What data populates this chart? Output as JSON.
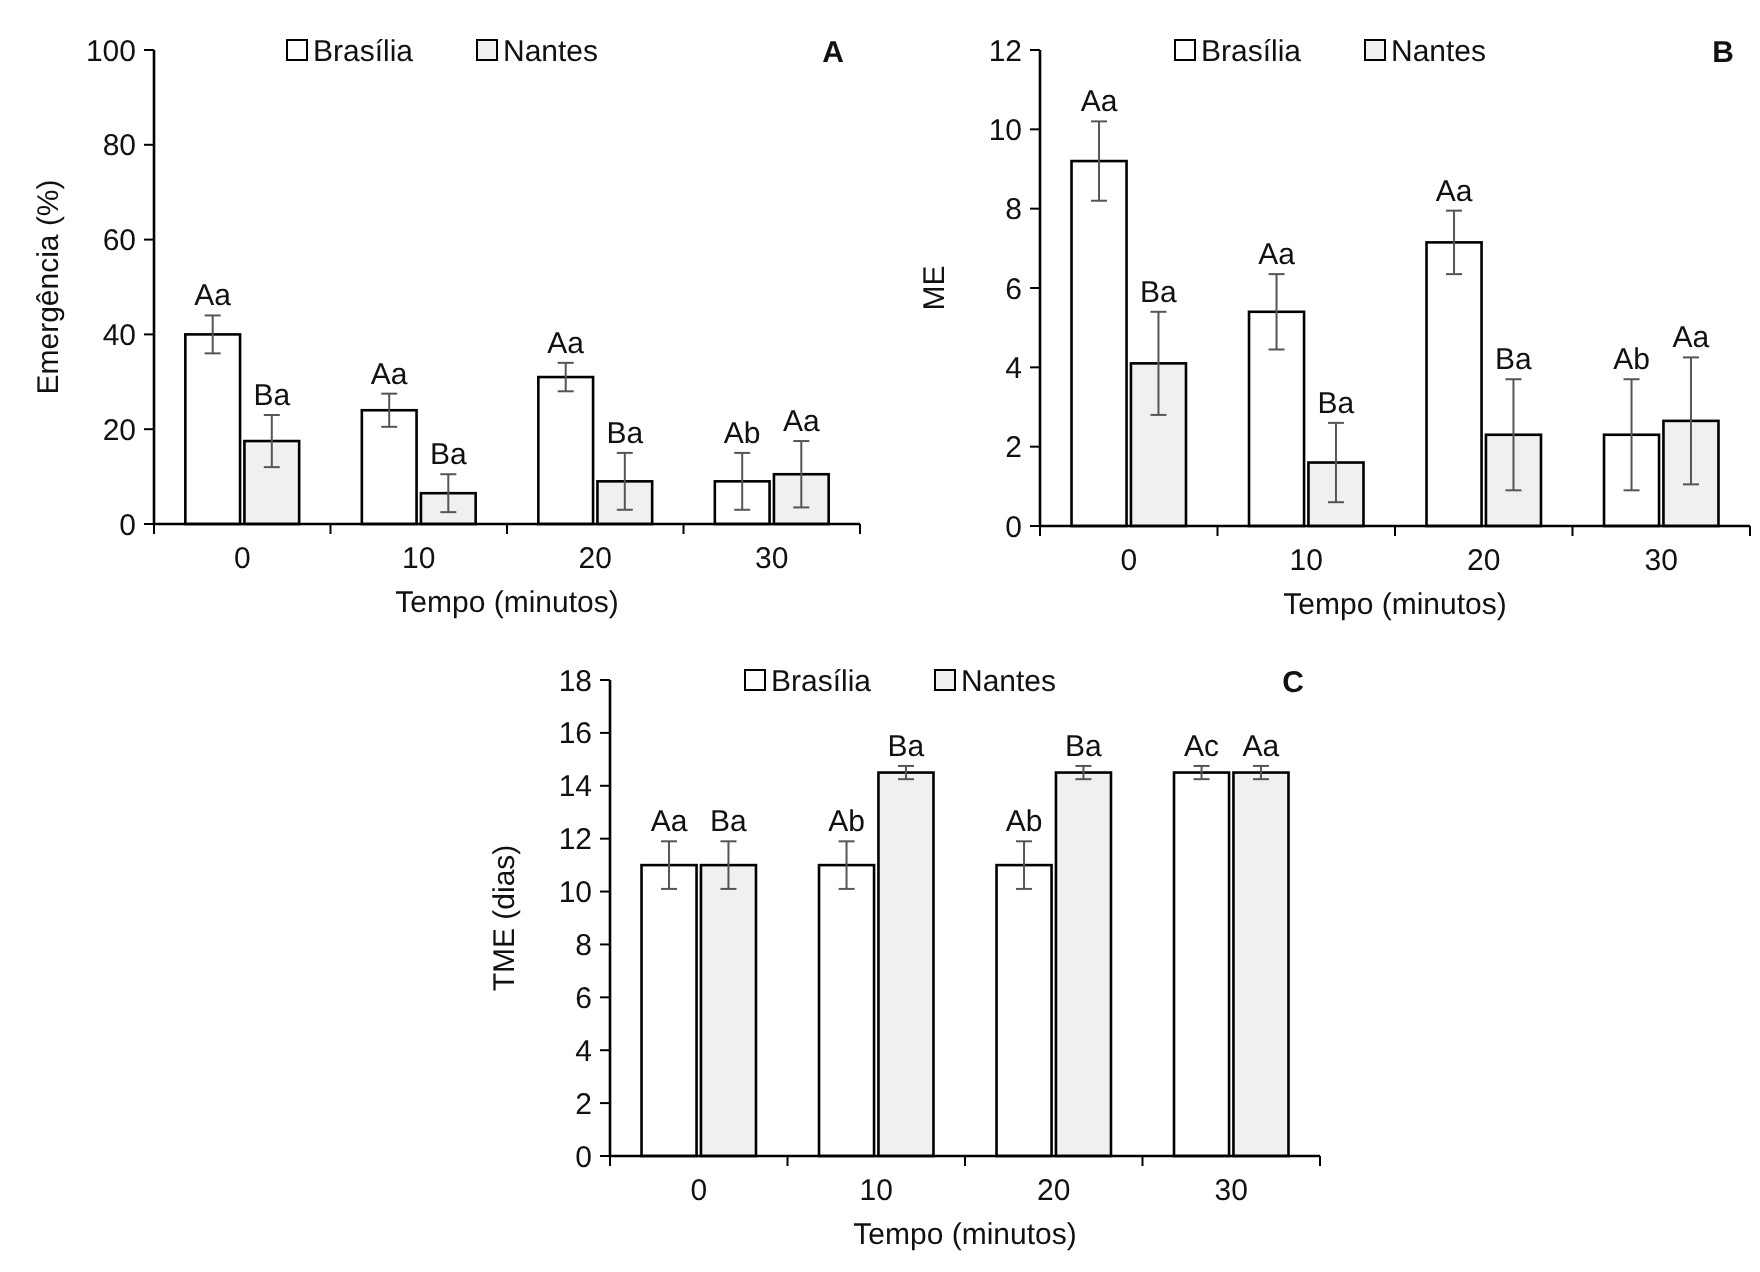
{
  "chart_data": [
    {
      "type": "bar",
      "title": "A",
      "xlabel": "Tempo (minutos)",
      "ylabel": "Emergência (%)",
      "categories": [
        "0",
        "10",
        "20",
        "30"
      ],
      "ylim": [
        0,
        100
      ],
      "yticks": [
        0,
        20,
        40,
        60,
        80,
        100
      ],
      "legend": "top",
      "grid": false,
      "series": [
        {
          "name": "Brasília",
          "color": "#ffffff",
          "values": [
            40,
            24,
            31,
            9
          ],
          "errors": [
            4,
            3.5,
            3,
            6
          ],
          "value_labels": [
            "Aa",
            "Aa",
            "Aa",
            "Ab"
          ]
        },
        {
          "name": "Nantes",
          "color": "#f0f0f0",
          "values": [
            17.5,
            6.5,
            9,
            10.5
          ],
          "errors": [
            5.5,
            4,
            6,
            7
          ],
          "value_labels": [
            "Ba",
            "Ba",
            "Ba",
            "Aa"
          ]
        }
      ]
    },
    {
      "type": "bar",
      "title": "B",
      "xlabel": "Tempo (minutos)",
      "ylabel": "ME",
      "categories": [
        "0",
        "10",
        "20",
        "30"
      ],
      "ylim": [
        0,
        12
      ],
      "yticks": [
        0,
        2,
        4,
        6,
        8,
        10,
        12
      ],
      "legend": "top",
      "grid": false,
      "series": [
        {
          "name": "Brasília",
          "color": "#ffffff",
          "values": [
            9.2,
            5.4,
            7.15,
            2.3
          ],
          "errors": [
            1,
            0.95,
            0.8,
            1.4
          ],
          "value_labels": [
            "Aa",
            "Aa",
            "Aa",
            "Ab"
          ]
        },
        {
          "name": "Nantes",
          "color": "#f0f0f0",
          "values": [
            4.1,
            1.6,
            2.3,
            2.65
          ],
          "errors": [
            1.3,
            1,
            1.4,
            1.6
          ],
          "value_labels": [
            "Ba",
            "Ba",
            "Ba",
            "Aa"
          ]
        }
      ]
    },
    {
      "type": "bar",
      "title": "C",
      "xlabel": "Tempo (minutos)",
      "ylabel": "TME  (dias)",
      "categories": [
        "0",
        "10",
        "20",
        "30"
      ],
      "ylim": [
        0,
        18
      ],
      "yticks": [
        0,
        2,
        4,
        6,
        8,
        10,
        12,
        14,
        16,
        18
      ],
      "legend": "top",
      "grid": false,
      "series": [
        {
          "name": "Brasília",
          "color": "#ffffff",
          "values": [
            11,
            11,
            11,
            14.5
          ],
          "errors": [
            0.9,
            0.9,
            0.9,
            0.25
          ],
          "value_labels": [
            "Aa",
            "Ab",
            "Ab",
            "Ac"
          ]
        },
        {
          "name": "Nantes",
          "color": "#f0f0f0",
          "values": [
            11,
            14.5,
            14.5,
            14.5
          ],
          "errors": [
            0.9,
            0.25,
            0.25,
            0.25
          ],
          "value_labels": [
            "Ba",
            "Ba",
            "Ba",
            "Aa"
          ]
        }
      ]
    }
  ]
}
